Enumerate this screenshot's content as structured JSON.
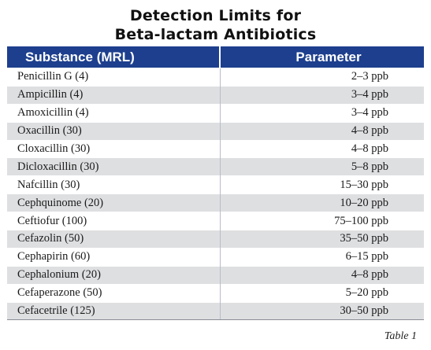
{
  "title_line1": "Detection Limits for",
  "title_line2": "Beta-lactam Antibiotics",
  "headers": {
    "substance": "Substance (MRL)",
    "parameter": "Parameter"
  },
  "rows": [
    {
      "substance": "Penicillin G (4)",
      "parameter": "2–3 ppb"
    },
    {
      "substance": "Ampicillin (4)",
      "parameter": "3–4 ppb"
    },
    {
      "substance": "Amoxicillin (4)",
      "parameter": "3–4 ppb"
    },
    {
      "substance": "Oxacillin (30)",
      "parameter": "4–8 ppb"
    },
    {
      "substance": "Cloxacillin (30)",
      "parameter": "4–8 ppb"
    },
    {
      "substance": "Dicloxacillin (30)",
      "parameter": "5–8 ppb"
    },
    {
      "substance": "Nafcillin (30)",
      "parameter": "15–30 ppb"
    },
    {
      "substance": "Cephquinome (20)",
      "parameter": "10–20 ppb"
    },
    {
      "substance": "Ceftiofur (100)",
      "parameter": "75–100 ppb"
    },
    {
      "substance": "Cefazolin (50)",
      "parameter": "35–50 ppb"
    },
    {
      "substance": "Cephapirin (60)",
      "parameter": "6–15 ppb"
    },
    {
      "substance": "Cephalonium (20)",
      "parameter": "4–8 ppb"
    },
    {
      "substance": "Cefaperazone (50)",
      "parameter": "5–20 ppb"
    },
    {
      "substance": "Cefacetrile (125)",
      "parameter": "30–50 ppb"
    }
  ],
  "caption": "Table 1",
  "colors": {
    "header_bg": "#1d3f8e",
    "header_text": "#ffffff",
    "stripe": "#dedfe1"
  }
}
